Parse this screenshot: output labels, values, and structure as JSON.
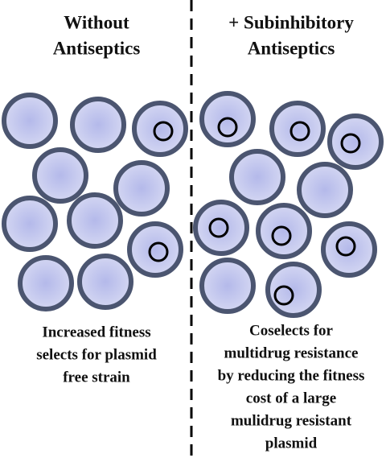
{
  "panels": [
    {
      "title": [
        "Without",
        "Antiseptics"
      ],
      "caption": [
        "Increased fitness",
        "selects for plasmid",
        "free strain"
      ]
    },
    {
      "title": [
        "+ Subinhibitory",
        "Antiseptics"
      ],
      "caption": [
        "Coselects for",
        "multidrug resistance",
        "by reducing the fitness",
        "cost of a large",
        "mulidrug resistant",
        "plasmid"
      ]
    }
  ]
}
